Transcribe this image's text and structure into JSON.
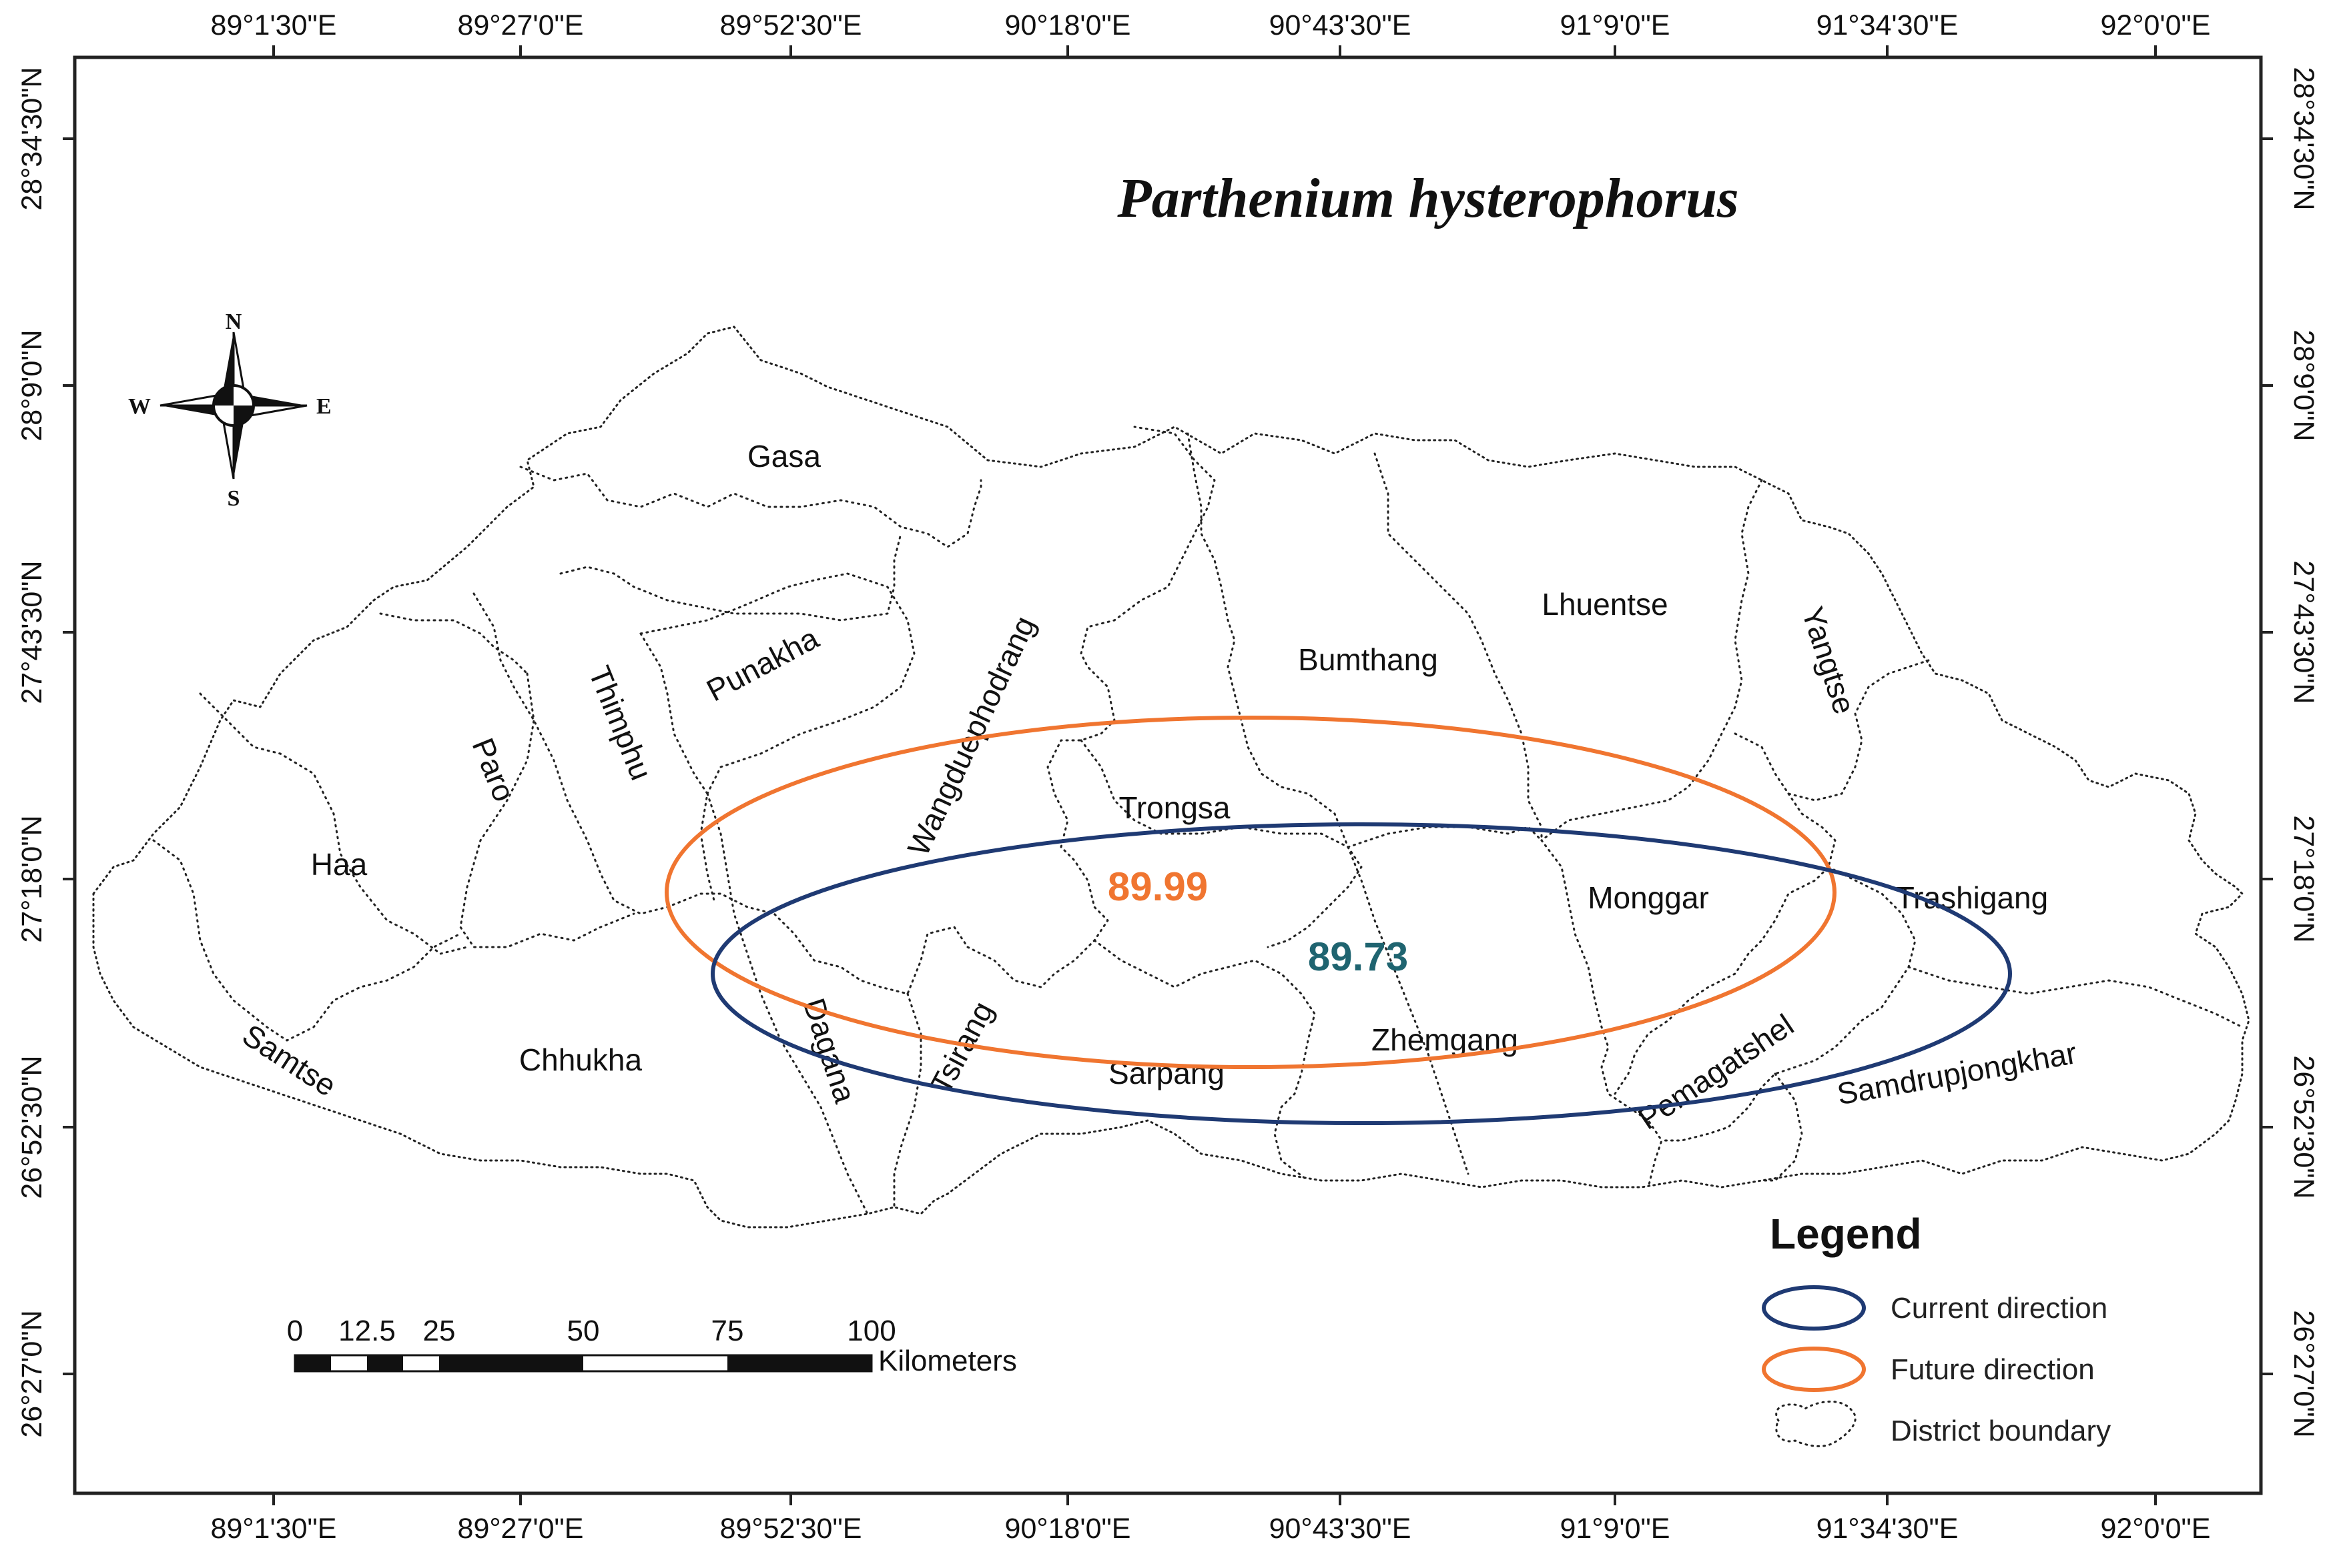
{
  "title": "Parthenium hysterophorus",
  "longitude_ticks": [
    "89°1'30\"E",
    "89°27'0\"E",
    "89°52'30\"E",
    "90°18'0\"E",
    "90°43'30\"E",
    "91°9'0\"E",
    "91°34'30\"E",
    "92°0'0\"E"
  ],
  "latitude_ticks": [
    "28°34'30\"N",
    "28°9'0\"N",
    "27°43'30\"N",
    "27°18'0\"N",
    "26°52'30\"N",
    "26°27'0\"N"
  ],
  "districts": {
    "gasa": "Gasa",
    "punakha": "Punakha",
    "wangduephodrang": "Wangduephodrang",
    "bumthang": "Bumthang",
    "lhuentse": "Lhuentse",
    "yangtse": "Yangtse",
    "thimphu": "Thimphu",
    "paro": "Paro",
    "haa": "Haa",
    "trongsa": "Trongsa",
    "monggar": "Monggar",
    "trashigang": "Trashigang",
    "samtse": "Samtse",
    "chhukha": "Chhukha",
    "dagana": "Dagana",
    "tsirang": "Tsirang",
    "sarpang": "Sarpang",
    "zhemgang": "Zhemgang",
    "pemagatshel": "Pemagatshel",
    "samdrupjongkhar": "Samdrupjongkhar"
  },
  "ellipses": {
    "current": {
      "value": "89.73",
      "color": "#1f3a73",
      "label_color": "#1f6470"
    },
    "future": {
      "value": "89.99",
      "color": "#f07530",
      "label_color": "#f07530"
    }
  },
  "compass": {
    "n": "N",
    "s": "S",
    "e": "E",
    "w": "W"
  },
  "scale_bar": {
    "ticks": [
      "0",
      "12.5",
      "25",
      "50",
      "75",
      "100"
    ],
    "unit": "Kilometers"
  },
  "legend": {
    "title": "Legend",
    "items": [
      {
        "label": "Current direction",
        "color": "#1f3a73"
      },
      {
        "label": "Future direction",
        "color": "#f07530"
      },
      {
        "label": "District boundary"
      }
    ]
  }
}
